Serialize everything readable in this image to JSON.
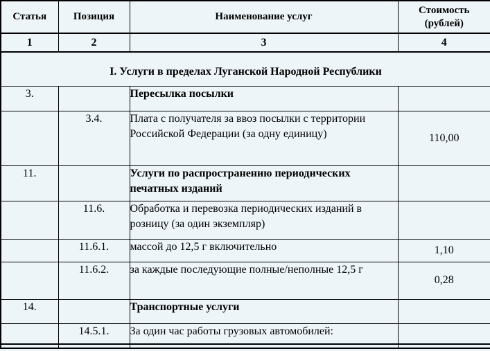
{
  "document": {
    "type": "tariff-table",
    "colors": {
      "background": "#eef5f9",
      "border": "#000000",
      "text": "#000000"
    },
    "table": {
      "columns": {
        "article": "Статья",
        "position": "Позиция",
        "name": "Наименование услуг",
        "cost": "Стоимость (рублей)"
      },
      "column_numbers": [
        "1",
        "2",
        "3",
        "4"
      ],
      "section_title": "I. Услуги в пределах Луганской Народной Республики",
      "rows": [
        {
          "article": "3.",
          "position": "",
          "name": "Пересылка посылки",
          "cost": ""
        },
        {
          "article": "",
          "position": "3.4.",
          "name": "Плата с получателя за ввоз посылки с территории Российской Федерации (за одну единицу)",
          "cost": "110,00"
        },
        {
          "article": "11.",
          "position": "",
          "name": "Услуги по распространению периодических печатных изданий",
          "cost": ""
        },
        {
          "article": "",
          "position": "11.6.",
          "name": "Обработка и перевозка периодических изданий в розницу (за один экземпляр)",
          "cost": ""
        },
        {
          "article": "",
          "position": "11.6.1.",
          "name": "массой до 12,5 г включительно",
          "cost": "1,10"
        },
        {
          "article": "",
          "position": "11.6.2.",
          "name": "за каждые последующие полные/неполные 12,5 г",
          "cost": "0,28"
        },
        {
          "article": "14.",
          "position": "",
          "name": " Транспортные услуги",
          "cost": ""
        },
        {
          "article": "",
          "position": "14.5.1.",
          "name": "За один час работы грузовых автомобилей:",
          "cost": ""
        }
      ]
    }
  }
}
